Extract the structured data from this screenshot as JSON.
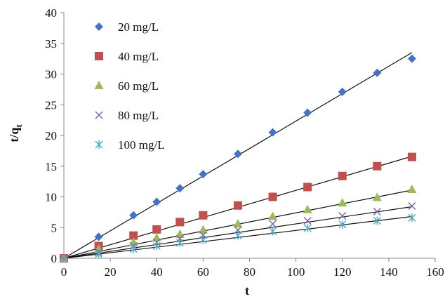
{
  "chart_data": {
    "type": "scatter",
    "xlabel": "t",
    "ylabel_main": "t/q",
    "ylabel_sub": "t",
    "xlim": [
      0,
      160
    ],
    "ylim": [
      0,
      40
    ],
    "xticks": [
      0,
      20,
      40,
      60,
      80,
      100,
      120,
      140,
      160
    ],
    "yticks": [
      0,
      5,
      10,
      15,
      20,
      25,
      30,
      35,
      40
    ],
    "grid": false,
    "legend_position": "top-left",
    "series": [
      {
        "name": "20 mg/L",
        "marker": "diamond",
        "color": "#4472C4",
        "points": [
          [
            0,
            0
          ],
          [
            15,
            3.5
          ],
          [
            30,
            7.0
          ],
          [
            40,
            9.2
          ],
          [
            50,
            11.4
          ],
          [
            60,
            13.7
          ],
          [
            75,
            17.0
          ],
          [
            90,
            20.5
          ],
          [
            105,
            23.7
          ],
          [
            120,
            27.1
          ],
          [
            135,
            30.2
          ],
          [
            150,
            32.5
          ]
        ],
        "fit": [
          [
            0,
            0
          ],
          [
            150,
            33.5
          ]
        ]
      },
      {
        "name": "40 mg/L",
        "marker": "square",
        "color": "#C0504D",
        "points": [
          [
            0,
            0
          ],
          [
            15,
            2.0
          ],
          [
            30,
            3.7
          ],
          [
            40,
            4.7
          ],
          [
            50,
            5.9
          ],
          [
            60,
            7.0
          ],
          [
            75,
            8.6
          ],
          [
            90,
            10.0
          ],
          [
            105,
            11.6
          ],
          [
            120,
            13.4
          ],
          [
            135,
            15.0
          ],
          [
            150,
            16.5
          ]
        ],
        "fit": [
          [
            0,
            0
          ],
          [
            150,
            16.6
          ]
        ]
      },
      {
        "name": "60 mg/L",
        "marker": "triangle",
        "color": "#9BBB59",
        "points": [
          [
            0,
            0
          ],
          [
            15,
            1.5
          ],
          [
            30,
            2.6
          ],
          [
            40,
            3.3
          ],
          [
            50,
            3.9
          ],
          [
            60,
            4.6
          ],
          [
            75,
            5.6
          ],
          [
            90,
            6.8
          ],
          [
            105,
            7.9
          ],
          [
            120,
            9.0
          ],
          [
            135,
            9.9
          ],
          [
            150,
            11.2
          ]
        ],
        "fit": [
          [
            0,
            0
          ],
          [
            150,
            11.1
          ]
        ]
      },
      {
        "name": "80 mg/L",
        "marker": "x",
        "color": "#8064A2",
        "points": [
          [
            0,
            0
          ],
          [
            15,
            1.0
          ],
          [
            30,
            2.0
          ],
          [
            40,
            2.6
          ],
          [
            50,
            3.2
          ],
          [
            60,
            3.8
          ],
          [
            75,
            4.6
          ],
          [
            90,
            5.6
          ],
          [
            105,
            6.1
          ],
          [
            120,
            6.9
          ],
          [
            135,
            7.6
          ],
          [
            150,
            8.5
          ]
        ],
        "fit": [
          [
            0,
            0
          ],
          [
            150,
            8.4
          ]
        ]
      },
      {
        "name": "100 mg/L",
        "marker": "asterisk",
        "color": "#4BACC6",
        "points": [
          [
            0,
            0
          ],
          [
            15,
            0.7
          ],
          [
            30,
            1.5
          ],
          [
            40,
            2.0
          ],
          [
            50,
            2.5
          ],
          [
            60,
            3.0
          ],
          [
            75,
            3.7
          ],
          [
            90,
            4.4
          ],
          [
            105,
            4.9
          ],
          [
            120,
            5.5
          ],
          [
            135,
            6.1
          ],
          [
            150,
            6.6
          ]
        ],
        "fit": [
          [
            0,
            0
          ],
          [
            150,
            6.8
          ]
        ]
      }
    ]
  }
}
